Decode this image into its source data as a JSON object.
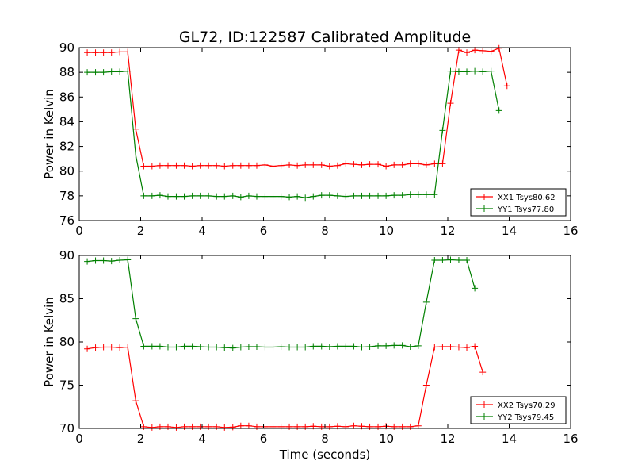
{
  "figure": {
    "title": "GL72, ID:122587 Calibrated Amplitude",
    "xlabel": "Time (seconds)"
  },
  "chart_data": [
    {
      "type": "line",
      "ylabel": "Power in Kelvin",
      "xlim": [
        0,
        16
      ],
      "ylim": [
        76,
        90
      ],
      "xticks": [
        0,
        2,
        4,
        6,
        8,
        10,
        12,
        14,
        16
      ],
      "yticks": [
        76,
        78,
        80,
        82,
        84,
        86,
        88,
        90
      ],
      "grid": false,
      "legend_position": "lower-right",
      "series": [
        {
          "name": "XX1 Tsys80.62",
          "color": "#ff0000",
          "marker": "+",
          "x": [
            0.26,
            0.53,
            0.79,
            1.05,
            1.32,
            1.58,
            1.84,
            2.1,
            2.37,
            2.63,
            2.89,
            3.16,
            3.42,
            3.68,
            3.94,
            4.21,
            4.47,
            4.73,
            5.0,
            5.26,
            5.52,
            5.78,
            6.05,
            6.31,
            6.57,
            6.84,
            7.1,
            7.36,
            7.62,
            7.89,
            8.15,
            8.41,
            8.68,
            8.94,
            9.2,
            9.46,
            9.73,
            9.99,
            10.25,
            10.52,
            10.78,
            11.04,
            11.3,
            11.57,
            11.83,
            12.09,
            12.36,
            12.62,
            12.88,
            13.14,
            13.41,
            13.67,
            13.93,
            14.2
          ],
          "values": [
            89.6,
            89.6,
            89.6,
            89.6,
            89.65,
            89.65,
            83.4,
            80.4,
            80.4,
            80.45,
            80.45,
            80.45,
            80.45,
            80.4,
            80.45,
            80.45,
            80.45,
            80.4,
            80.45,
            80.45,
            80.45,
            80.45,
            80.5,
            80.4,
            80.45,
            80.5,
            80.45,
            80.5,
            80.5,
            80.5,
            80.4,
            80.45,
            80.6,
            80.55,
            80.5,
            80.55,
            80.55,
            80.4,
            80.5,
            80.5,
            80.6,
            80.6,
            80.5,
            80.6,
            80.6,
            85.5,
            89.8,
            89.6,
            89.8,
            89.75,
            89.7,
            89.95,
            86.9,
            null
          ]
        },
        {
          "name": "YY1 Tsys77.80",
          "color": "#008000",
          "marker": "+",
          "x": [
            0.26,
            0.53,
            0.79,
            1.05,
            1.32,
            1.58,
            1.84,
            2.1,
            2.37,
            2.63,
            2.89,
            3.16,
            3.42,
            3.68,
            3.94,
            4.21,
            4.47,
            4.73,
            5.0,
            5.26,
            5.52,
            5.78,
            6.05,
            6.31,
            6.57,
            6.84,
            7.1,
            7.36,
            7.62,
            7.89,
            8.15,
            8.41,
            8.68,
            8.94,
            9.2,
            9.46,
            9.73,
            9.99,
            10.25,
            10.52,
            10.78,
            11.04,
            11.3,
            11.57,
            11.83,
            12.09,
            12.36,
            12.62,
            12.88,
            13.14,
            13.41,
            13.67,
            13.93,
            14.2
          ],
          "values": [
            88.0,
            88.0,
            88.0,
            88.05,
            88.05,
            88.1,
            81.3,
            78.0,
            78.0,
            78.05,
            77.95,
            77.95,
            77.95,
            78.0,
            78.0,
            78.0,
            77.95,
            77.95,
            78.0,
            77.9,
            78.0,
            77.95,
            77.95,
            77.95,
            77.95,
            77.9,
            77.95,
            77.85,
            77.95,
            78.05,
            78.05,
            78.0,
            77.95,
            78.0,
            78.0,
            78.0,
            78.0,
            78.0,
            78.05,
            78.05,
            78.1,
            78.1,
            78.1,
            78.1,
            83.3,
            88.1,
            88.05,
            88.05,
            88.1,
            88.05,
            88.1,
            84.9,
            null,
            null
          ]
        }
      ]
    },
    {
      "type": "line",
      "ylabel": "Power in Kelvin",
      "xlabel": "Time (seconds)",
      "xlim": [
        0,
        16
      ],
      "ylim": [
        70,
        90
      ],
      "xticks": [
        0,
        2,
        4,
        6,
        8,
        10,
        12,
        14,
        16
      ],
      "yticks": [
        70,
        75,
        80,
        85,
        90
      ],
      "grid": false,
      "legend_position": "lower-right",
      "series": [
        {
          "name": "XX2 Tsys70.29",
          "color": "#ff0000",
          "marker": "+",
          "x": [
            0.26,
            0.53,
            0.79,
            1.05,
            1.32,
            1.58,
            1.84,
            2.1,
            2.37,
            2.63,
            2.89,
            3.16,
            3.42,
            3.68,
            3.94,
            4.21,
            4.47,
            4.73,
            5.0,
            5.26,
            5.52,
            5.78,
            6.05,
            6.31,
            6.57,
            6.84,
            7.1,
            7.36,
            7.62,
            7.89,
            8.15,
            8.41,
            8.68,
            8.94,
            9.2,
            9.46,
            9.73,
            9.99,
            10.25,
            10.52,
            10.78,
            11.04,
            11.3,
            11.57,
            11.83,
            12.09,
            12.36,
            12.62,
            12.88,
            13.14,
            13.41,
            13.67,
            13.93,
            14.2
          ],
          "values": [
            79.2,
            79.35,
            79.4,
            79.4,
            79.35,
            79.4,
            73.2,
            70.2,
            70.1,
            70.2,
            70.2,
            70.1,
            70.2,
            70.2,
            70.2,
            70.2,
            70.2,
            70.1,
            70.15,
            70.3,
            70.3,
            70.2,
            70.2,
            70.2,
            70.2,
            70.2,
            70.2,
            70.2,
            70.25,
            70.2,
            70.2,
            70.25,
            70.2,
            70.3,
            70.25,
            70.2,
            70.2,
            70.25,
            70.2,
            70.2,
            70.2,
            70.3,
            75.0,
            79.4,
            79.45,
            79.45,
            79.4,
            79.35,
            79.5,
            76.5,
            null,
            null,
            null,
            null
          ]
        },
        {
          "name": "YY2 Tsys79.45",
          "color": "#008000",
          "marker": "+",
          "x": [
            0.26,
            0.53,
            0.79,
            1.05,
            1.32,
            1.58,
            1.84,
            2.1,
            2.37,
            2.63,
            2.89,
            3.16,
            3.42,
            3.68,
            3.94,
            4.21,
            4.47,
            4.73,
            5.0,
            5.26,
            5.52,
            5.78,
            6.05,
            6.31,
            6.57,
            6.84,
            7.1,
            7.36,
            7.62,
            7.89,
            8.15,
            8.41,
            8.68,
            8.94,
            9.2,
            9.46,
            9.73,
            9.99,
            10.25,
            10.52,
            10.78,
            11.04,
            11.3,
            11.57,
            11.83,
            12.09,
            12.36,
            12.62,
            12.88,
            13.14,
            13.41,
            13.67,
            13.93,
            14.2
          ],
          "values": [
            89.3,
            89.4,
            89.4,
            89.35,
            89.45,
            89.5,
            82.7,
            79.5,
            79.5,
            79.5,
            79.4,
            79.4,
            79.5,
            79.5,
            79.45,
            79.4,
            79.4,
            79.35,
            79.3,
            79.4,
            79.45,
            79.45,
            79.4,
            79.4,
            79.45,
            79.4,
            79.4,
            79.4,
            79.5,
            79.5,
            79.45,
            79.5,
            79.5,
            79.5,
            79.4,
            79.45,
            79.55,
            79.55,
            79.6,
            79.6,
            79.45,
            79.55,
            84.6,
            89.45,
            89.45,
            89.5,
            89.45,
            89.45,
            86.2,
            null,
            null,
            null,
            null,
            null
          ]
        }
      ]
    }
  ]
}
